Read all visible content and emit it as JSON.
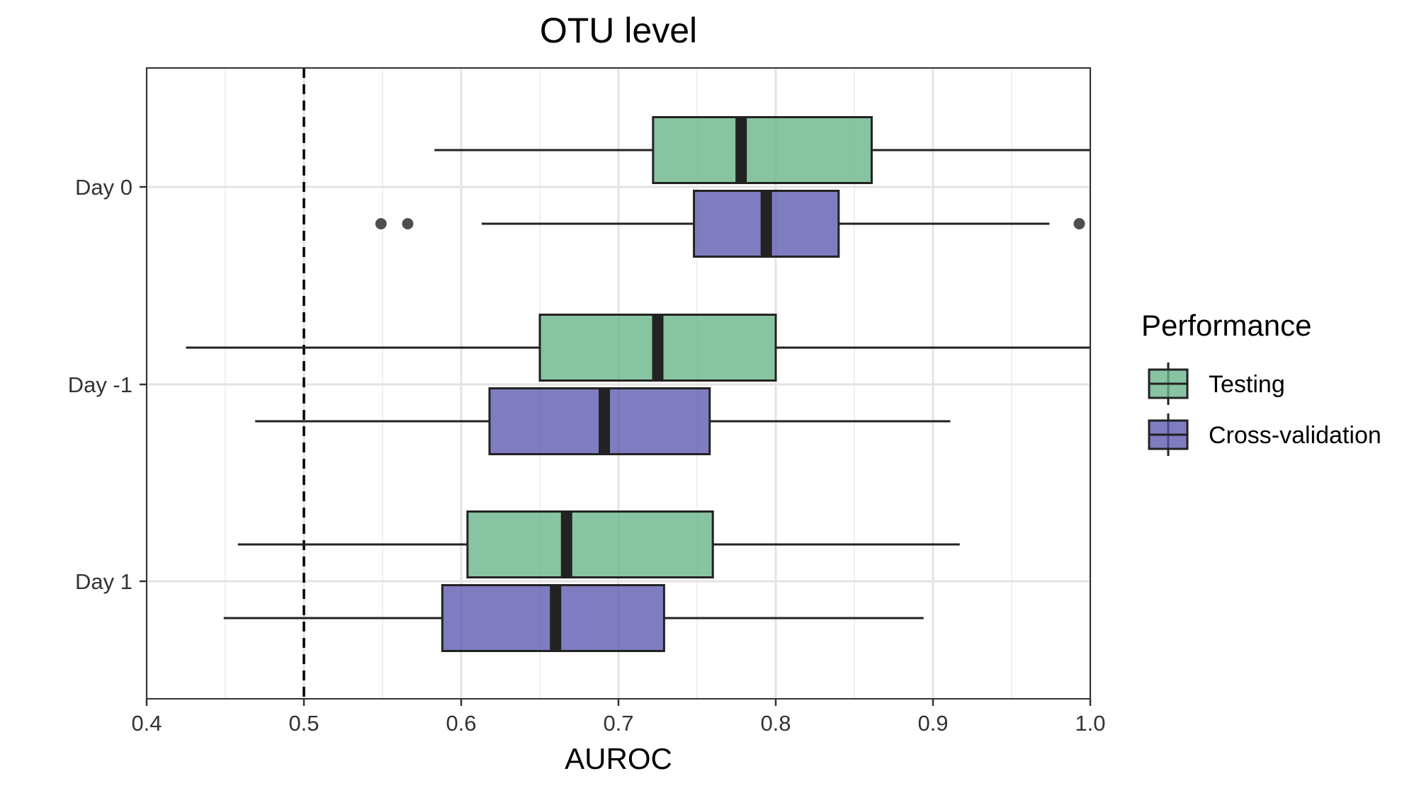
{
  "chart_data": {
    "type": "boxplot",
    "orientation": "horizontal",
    "title": "OTU level",
    "xlabel": "AUROC",
    "ylabel": "",
    "xlim": [
      0.4,
      1.0
    ],
    "xticks": [
      "0.4",
      "0.5",
      "0.6",
      "0.7",
      "0.8",
      "0.9",
      "1.0"
    ],
    "categories": [
      "Day 0",
      "Day -1",
      "Day 1"
    ],
    "reference_line": {
      "x": 0.5,
      "style": "dashed"
    },
    "grid": true,
    "series": [
      {
        "name": "Testing",
        "color": "#66B486",
        "boxes": [
          {
            "category": "Day 0",
            "min": 0.583,
            "q1": 0.722,
            "median": 0.778,
            "q3": 0.861,
            "max": 1.0,
            "outliers": []
          },
          {
            "category": "Day -1",
            "min": 0.425,
            "q1": 0.65,
            "median": 0.725,
            "q3": 0.8,
            "max": 1.0,
            "outliers": []
          },
          {
            "category": "Day 1",
            "min": 0.458,
            "q1": 0.604,
            "median": 0.667,
            "q3": 0.76,
            "max": 0.917,
            "outliers": []
          }
        ]
      },
      {
        "name": "Cross-validation",
        "color": "#5B57AE",
        "boxes": [
          {
            "category": "Day 0",
            "min": 0.613,
            "q1": 0.748,
            "median": 0.794,
            "q3": 0.84,
            "max": 0.974,
            "outliers": [
              0.549,
              0.566,
              0.993
            ]
          },
          {
            "category": "Day -1",
            "min": 0.469,
            "q1": 0.618,
            "median": 0.691,
            "q3": 0.758,
            "max": 0.911,
            "outliers": []
          },
          {
            "category": "Day 1",
            "min": 0.449,
            "q1": 0.588,
            "median": 0.66,
            "q3": 0.729,
            "max": 0.894,
            "outliers": []
          }
        ]
      }
    ],
    "legend": {
      "title": "Performance",
      "position": "right",
      "entries": [
        "Testing",
        "Cross-validation"
      ]
    }
  }
}
